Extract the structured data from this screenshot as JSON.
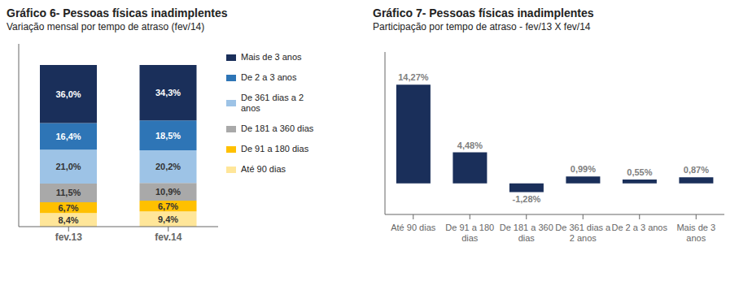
{
  "chart_data": [
    {
      "type": "bar",
      "title": "Gráfico 6- Pessoas físicas inadimplentes",
      "subtitle": "Variação mensal por tempo de atraso (fev/14)",
      "stacked": true,
      "data_labels": true,
      "tick_labels": "x",
      "categories": [
        "fev.13",
        "fev.14"
      ],
      "series": [
        {
          "name": "Mais de 3 anos",
          "color": "#1a2f5a",
          "values": [
            36.0,
            34.3
          ],
          "value_labels": [
            "36,0%",
            "34,3%"
          ]
        },
        {
          "name": "De 2 a 3 anos",
          "color": "#2e75b6",
          "values": [
            16.4,
            18.5
          ],
          "value_labels": [
            "16,4%",
            "18,5%"
          ]
        },
        {
          "name": "De 361 dias a 2\nanos",
          "color": "#9dc3e6",
          "values": [
            21.0,
            20.2
          ],
          "value_labels": [
            "21,0%",
            "20,2%"
          ]
        },
        {
          "name": "De 181 a 360 dias",
          "color": "#a9a9a9",
          "values": [
            11.5,
            10.9
          ],
          "value_labels": [
            "11,5%",
            "10,9%"
          ]
        },
        {
          "name": "De 91 a 180 dias",
          "color": "#ffc000",
          "values": [
            6.7,
            6.7
          ],
          "value_labels": [
            "6,7%",
            "6,7%"
          ]
        },
        {
          "name": "Até 90 dias",
          "color": "#ffe699",
          "values": [
            8.4,
            9.4
          ],
          "value_labels": [
            "8,4%",
            "9,4%"
          ]
        }
      ],
      "ylim": [
        0,
        113
      ],
      "yticks": []
    },
    {
      "type": "bar",
      "title": "Gráfico 7- Pessoas físicas inadimplentes",
      "subtitle": "Participação por tempo de atraso - fev/13 X fev/14",
      "data_labels": true,
      "tick_labels": "x",
      "categories": [
        "Até 90 dias",
        "De 91 a 180\ndias",
        "De 181 a 360\ndias",
        "De 361 dias a\n2 anos",
        "De 2 a 3 anos",
        "Mais de 3\nanos"
      ],
      "values": [
        14.27,
        4.48,
        -1.28,
        0.99,
        0.55,
        0.87
      ],
      "value_labels": [
        "14,27%",
        "4,48%",
        "-1,28%",
        "0,99%",
        "0,55%",
        "0,87%"
      ],
      "color": "#1a2f5a",
      "ylim": [
        -4.5,
        19
      ],
      "yticks": []
    }
  ]
}
